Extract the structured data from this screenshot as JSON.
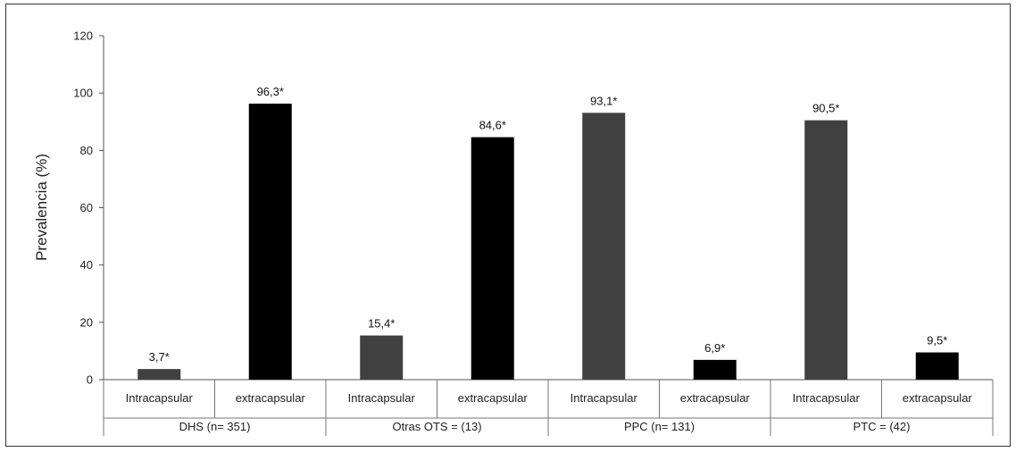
{
  "chart_data": {
    "type": "bar",
    "ylabel": "Prevalencia (%)",
    "ylim": [
      0,
      120
    ],
    "yticks": [
      0,
      20,
      40,
      60,
      80,
      100,
      120
    ],
    "grid": false,
    "groups": [
      {
        "label": "DHS (n= 351)",
        "bars": [
          {
            "category": "Intracapsular",
            "value": 3.7,
            "label": "3,7*",
            "color": "#404040"
          },
          {
            "category": "extracapsular",
            "value": 96.3,
            "label": "96,3*",
            "color": "#000000"
          }
        ]
      },
      {
        "label": "Otras OTS = (13)",
        "bars": [
          {
            "category": "Intracapsular",
            "value": 15.4,
            "label": "15,4*",
            "color": "#404040"
          },
          {
            "category": "extracapsular",
            "value": 84.6,
            "label": "84,6*",
            "color": "#000000"
          }
        ]
      },
      {
        "label": "PPC (n= 131)",
        "bars": [
          {
            "category": "Intracapsular",
            "value": 93.1,
            "label": "93,1*",
            "color": "#404040"
          },
          {
            "category": "extracapsular",
            "value": 6.9,
            "label": "6,9*",
            "color": "#000000"
          }
        ]
      },
      {
        "label": "PTC = (42)",
        "bars": [
          {
            "category": "Intracapsular",
            "value": 90.5,
            "label": "90,5*",
            "color": "#404040"
          },
          {
            "category": "extracapsular",
            "value": 9.5,
            "label": "9,5*",
            "color": "#000000"
          }
        ]
      }
    ]
  }
}
